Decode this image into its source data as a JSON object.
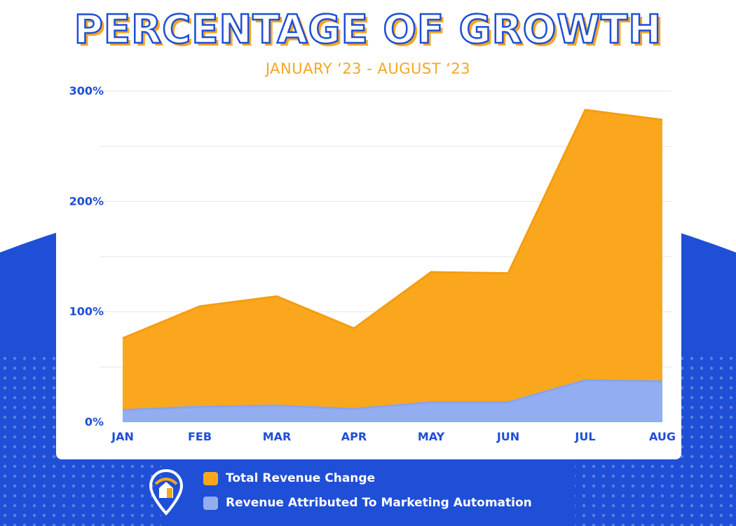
{
  "title": "PERCENTAGE OF GROWTH",
  "subtitle": "JANUARY ‘23 - AUGUST ‘23",
  "colors": {
    "brand_blue": "#1f4fd6",
    "accent_orange": "#f5a623",
    "series_total": "#fba71d",
    "series_marketing": "#93aef0"
  },
  "chart_data": {
    "type": "area",
    "categories": [
      "JAN",
      "FEB",
      "MAR",
      "APR",
      "MAY",
      "JUN",
      "JUL",
      "AUG"
    ],
    "series": [
      {
        "name": "Total Revenue Change",
        "values": [
          76,
          105,
          114,
          85,
          136,
          135,
          283,
          274
        ],
        "color": "#fba71d"
      },
      {
        "name": "Revenue Attributed To Marketing Automation",
        "values": [
          11,
          14,
          15,
          12,
          18,
          18,
          38,
          37
        ],
        "color": "#93aef0"
      }
    ],
    "y_ticks": [
      "0%",
      "100%",
      "200%",
      "300%"
    ],
    "ylim": [
      0,
      300
    ],
    "grid": true,
    "legend_position": "bottom"
  },
  "legend": [
    {
      "label": "Total Revenue Change",
      "color": "#fba71d"
    },
    {
      "label": "Revenue Attributed To Marketing Automation",
      "color": "#93aef0"
    }
  ],
  "logo_icon": "map-pin-house-icon"
}
